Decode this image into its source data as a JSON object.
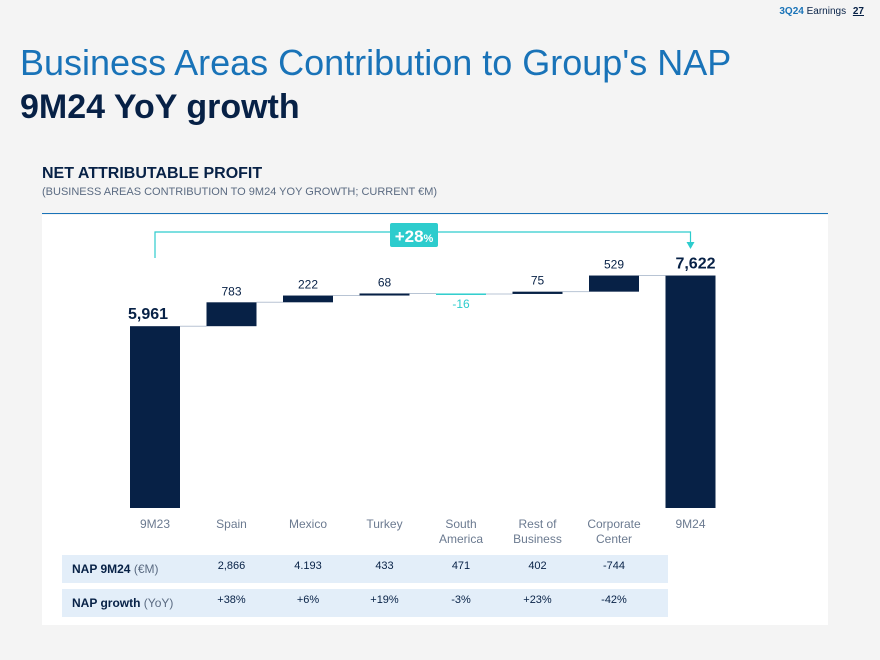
{
  "header": {
    "brand": "3Q24",
    "label": "Earnings",
    "page": "27"
  },
  "title": "Business Areas Contribution to Group's NAP",
  "subtitle": "9M24 YoY growth",
  "section": {
    "title": "NET ATTRIBUTABLE PROFIT",
    "note": "(BUSINESS AREAS CONTRIBUTION TO 9M24 YOY GROWTH; CURRENT €M)"
  },
  "colors": {
    "bar": "#072146",
    "negative": "#2dcccd",
    "accent": "#1973b8"
  },
  "growth_badge": {
    "value": "+28",
    "unit": "%"
  },
  "chart_data": {
    "type": "bar",
    "subtype": "waterfall",
    "categories": [
      [
        "9M23"
      ],
      [
        "Spain"
      ],
      [
        "Mexico"
      ],
      [
        "Turkey"
      ],
      [
        "South",
        "America"
      ],
      [
        "Rest of",
        "Business"
      ],
      [
        "Corporate",
        "Center"
      ],
      [
        "9M24"
      ]
    ],
    "values": [
      5961,
      783,
      222,
      68,
      -16,
      75,
      529,
      7622
    ],
    "labels": [
      "5,961",
      "783",
      "222",
      "68",
      "-16",
      "75",
      "529",
      "7,622"
    ],
    "kinds": [
      "total",
      "delta",
      "delta",
      "delta",
      "delta",
      "delta",
      "delta",
      "total"
    ]
  },
  "table": {
    "rows": [
      {
        "label": "NAP 9M24",
        "unit": "(€M)",
        "values": [
          "2,866",
          "4.193",
          "433",
          "471",
          "402",
          "-744"
        ]
      },
      {
        "label": "NAP growth",
        "unit": "(YoY)",
        "values": [
          "+38%",
          "+6%",
          "+19%",
          "-3%",
          "+23%",
          "-42%"
        ]
      }
    ]
  }
}
